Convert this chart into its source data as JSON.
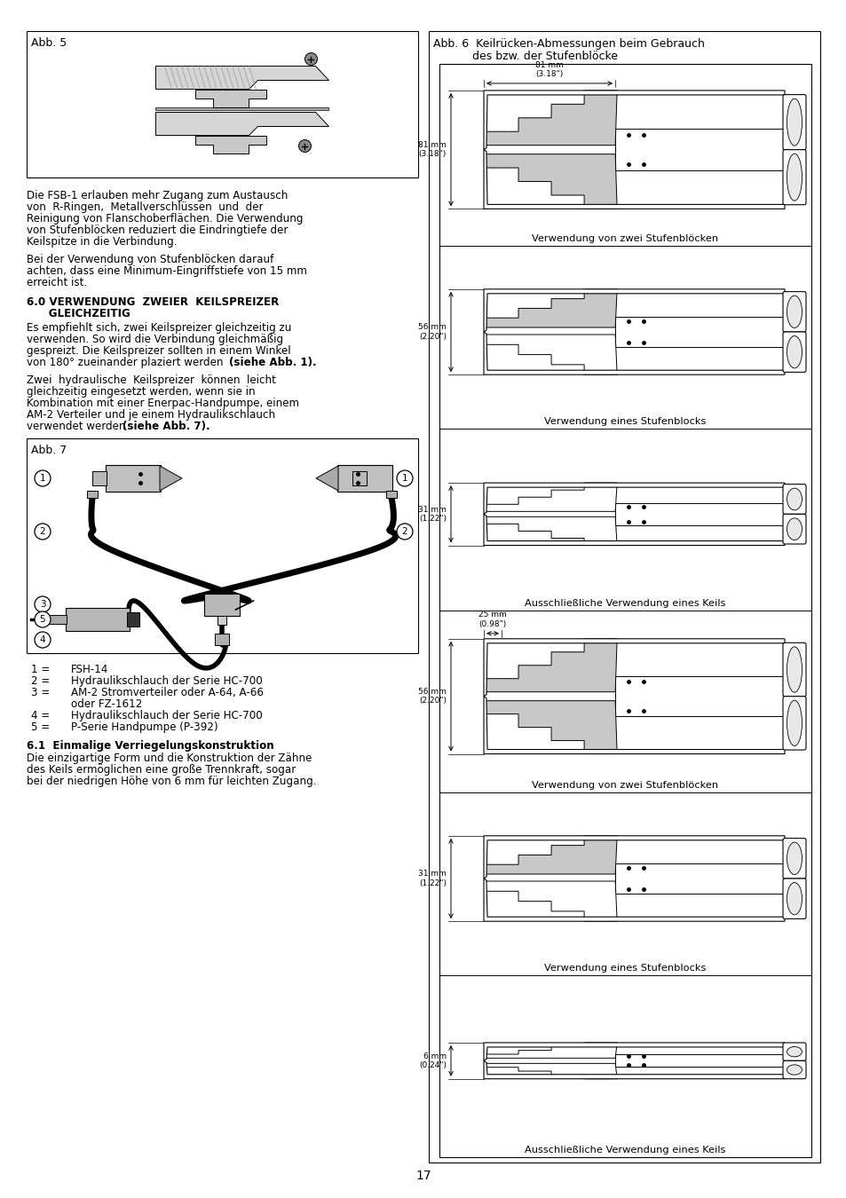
{
  "page_number": "17",
  "bg_color": "#ffffff",
  "left_col": {
    "fig5_title": "Abb. 5",
    "para1_lines": [
      "Die FSB-1 erlauben mehr Zugang zum Austausch",
      "von  R-Ringen,  Metallverschlüssen  und  der",
      "Reinigung von Flanschoberflächen. Die Verwendung",
      "von Stufenblöcken reduziert die Eindringtiefe der",
      "Keilspitze in die Verbindung."
    ],
    "para2_lines": [
      "Bei der Verwendung von Stufenblöcken darauf",
      "achten, dass eine Minimum-Eingriffstiefe von 15 mm",
      "erreicht ist."
    ],
    "heading1_line1": "6.0 VERWENDUNG  ZWEIER  KEILSPREIZER",
    "heading1_line2": "      GLEICHZEITIG",
    "para3_lines": [
      "Es empfiehlt sich, zwei Keilspreizer gleichzeitig zu",
      "verwenden. So wird die Verbindung gleichmäßig",
      "gespreizt. Die Keilspreizer sollten in einem Winkel",
      "von 180° zueinander plaziert werden"
    ],
    "para3_bold_end": "(siehe Abb. 1).",
    "para4_lines": [
      "Zwei  hydraulische  Keilspreizer  können  leicht",
      "gleichzeitig eingesetzt werden, wenn sie in",
      "Kombination mit einer Enerpac-Handpumpe, einem",
      "AM-2 Verteiler und je einem Hydraulikschlauch",
      "verwendet werden"
    ],
    "para4_bold_end": "(siehe Abb. 7).",
    "fig7_title": "Abb. 7",
    "list_items": [
      [
        "1 =",
        "FSH-14"
      ],
      [
        "2 =",
        "Hydraulikschlauch der Serie HC-700"
      ],
      [
        "3 =",
        "AM-2 Stromverteiler oder A-64, A-66"
      ],
      [
        "",
        "oder FZ-1612"
      ],
      [
        "4 =",
        "Hydraulikschlauch der Serie HC-700"
      ],
      [
        "5 =",
        "P-Serie Handpumpe (P-392)"
      ]
    ],
    "heading2": "6.1  Einmalige Verriegelungskonstruktion",
    "para5_lines": [
      "Die einzigartige Form und die Konstruktion der Zähne",
      "des Keils ermöglichen eine große Trennkraft, sogar",
      "bei der niedrigen Höhe von 6 mm für leichten Zugang."
    ]
  },
  "right_col": {
    "fig6_title1": "Abb. 6  Keilrücken-Abmessungen beim Gebrauch",
    "fig6_title2": "des bzw. der Stufenblöcke",
    "panel_captions": [
      "Verwendung von zwei Stufenblöcken",
      "Verwendung eines Stufenblocks",
      "Ausschließliche Verwendung eines Keils",
      "Verwendung von zwei Stufenblöcken",
      "Verwendung eines Stufenblocks",
      "Ausschließliche Verwendung eines Keils"
    ]
  }
}
